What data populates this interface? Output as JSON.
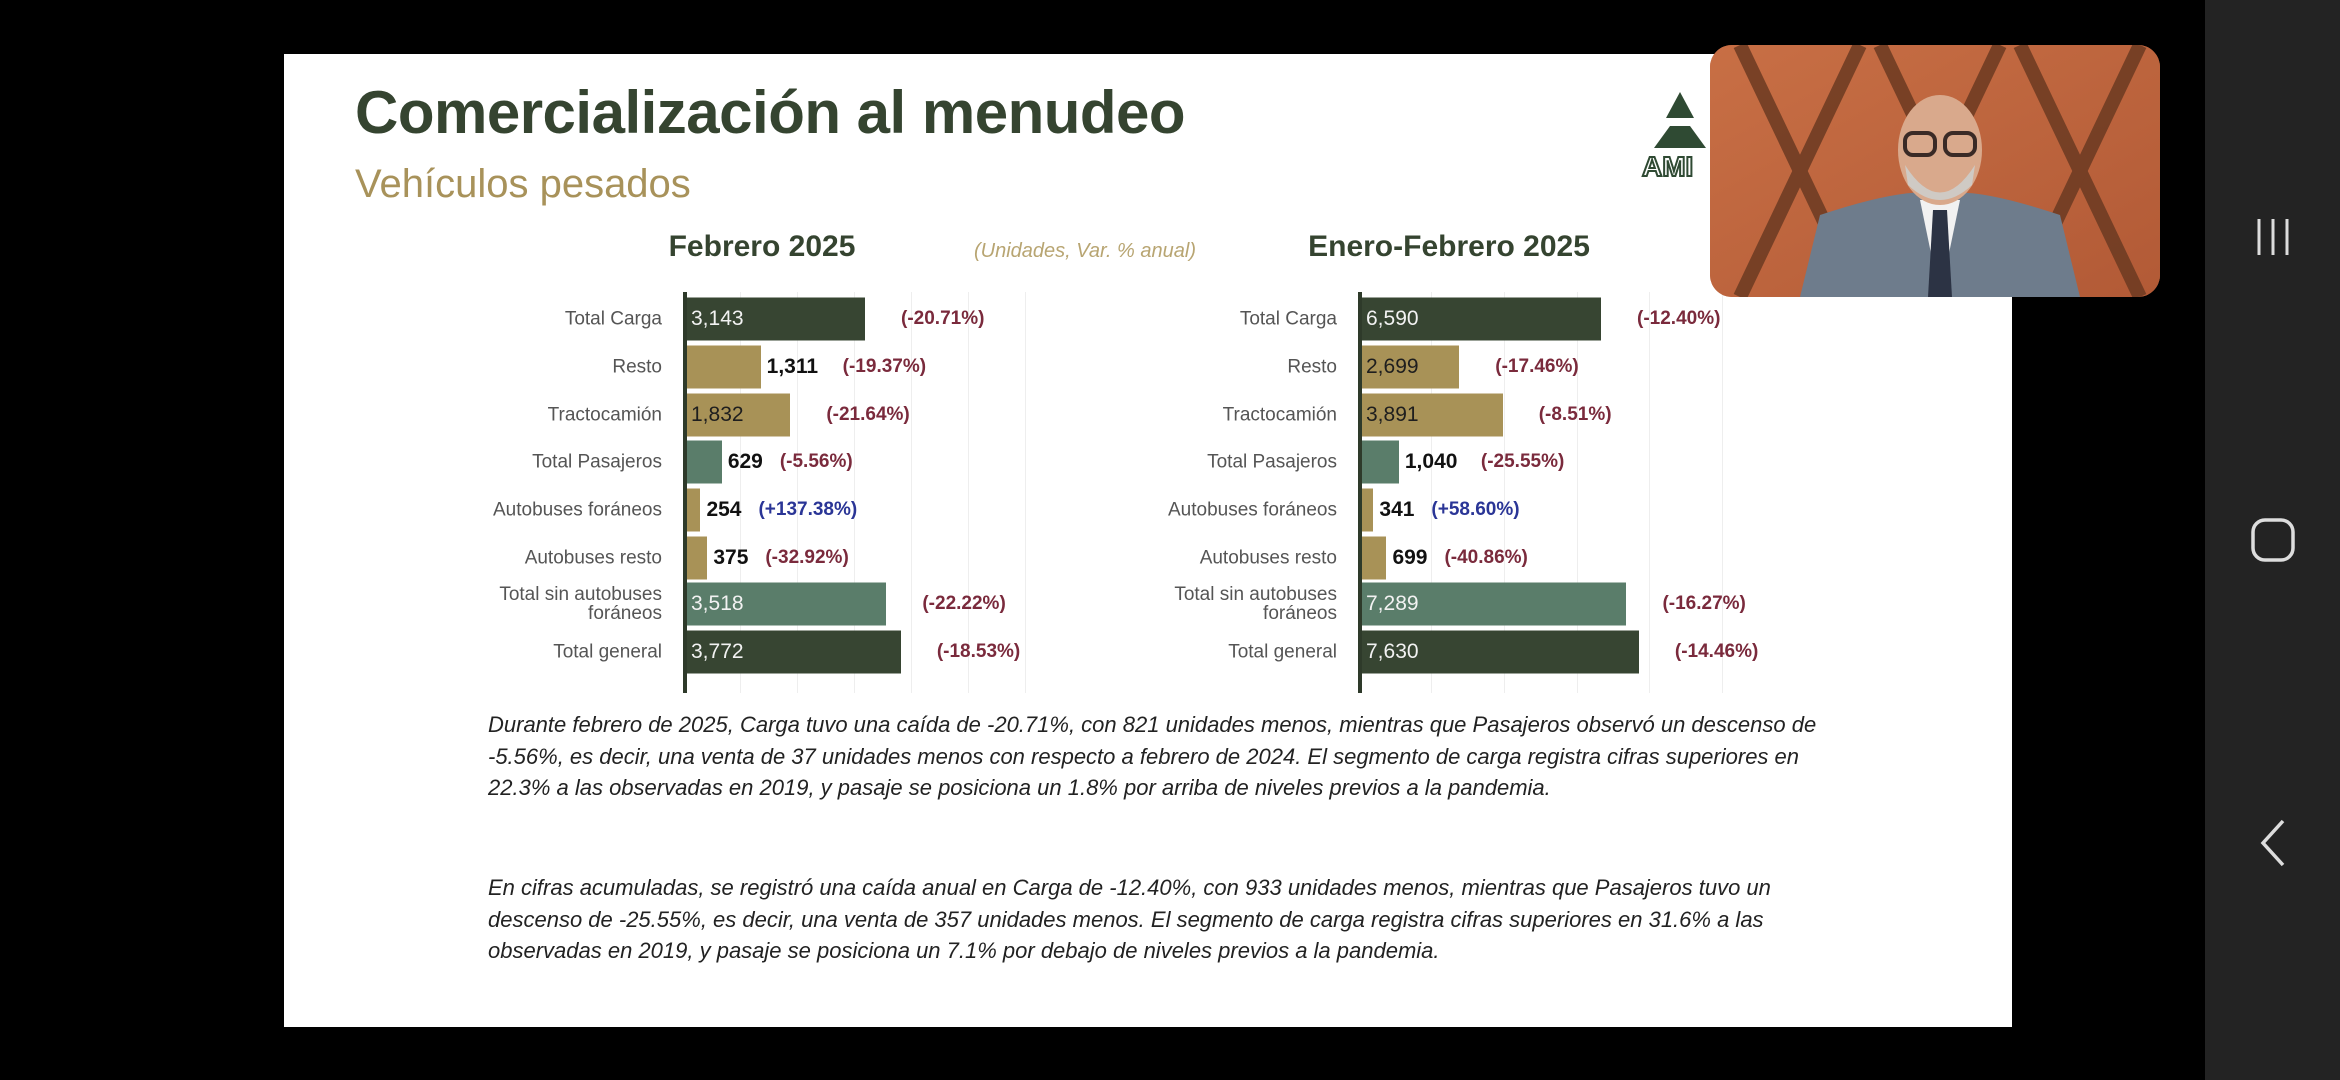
{
  "slide": {
    "title": "Comercialización al menudeo",
    "subtitle": "Vehículos pesados",
    "logo_text": "AMIA",
    "units_note": "(Unidades, Var. % anual)",
    "paragraphs": [
      "Durante febrero de 2025, Carga tuvo una caída de -20.71%, con 821 unidades menos, mientras que Pasajeros observó un descenso de -5.56%, es decir, una venta de 37 unidades menos con respecto a febrero de 2024. El segmento de carga registra cifras superiores en 22.3% a las observadas en 2019, y pasaje se posiciona un 1.8% por arriba de niveles previos a la pandemia.",
      "En cifras acumuladas, se registró una caída anual en Carga de -12.40%, con 933 unidades menos, mientras que Pasajeros tuvo un descenso de -25.55%, es decir, una venta de 357 unidades menos. El segmento de carga registra cifras superiores en 31.6% a las observadas en 2019, y pasaje se posiciona un 7.1% por debajo de niveles previos a la pandemia."
    ]
  },
  "colors": {
    "dark_green": "#374532",
    "gold": "#a89257",
    "teal": "#5a7d6a",
    "negative": "#7a2a3c",
    "positive": "#2a3596"
  },
  "chart_data": [
    {
      "type": "bar",
      "orientation": "horizontal",
      "title": "Febrero 2025",
      "grid_step": 1000,
      "categories": [
        "Total Carga",
        "Resto",
        "Tractocamión",
        "Total Pasajeros",
        "Autobuses foráneos",
        "Autobuses resto",
        "Total sin autobuses foráneos",
        "Total general"
      ],
      "values": [
        3143,
        1311,
        1832,
        629,
        254,
        375,
        3518,
        3772
      ],
      "value_labels": [
        "3,143",
        "1,311",
        "1,832",
        "629",
        "254",
        "375",
        "3,518",
        "3,772"
      ],
      "changes": [
        "(-20.71%)",
        "(-19.37%)",
        "(-21.64%)",
        "(-5.56%)",
        "(+137.38%)",
        "(-32.92%)",
        "(-22.22%)",
        "(-18.53%)"
      ],
      "bar_colors": [
        "dark_green",
        "gold",
        "gold",
        "teal",
        "gold",
        "gold",
        "teal",
        "dark_green"
      ]
    },
    {
      "type": "bar",
      "orientation": "horizontal",
      "title": "Enero-Febrero 2025",
      "grid_step": 2000,
      "categories": [
        "Total Carga",
        "Resto",
        "Tractocamión",
        "Total Pasajeros",
        "Autobuses foráneos",
        "Autobuses resto",
        "Total sin autobuses foráneos",
        "Total general"
      ],
      "values": [
        6590,
        2699,
        3891,
        1040,
        341,
        699,
        7289,
        7630
      ],
      "value_labels": [
        "6,590",
        "2,699",
        "3,891",
        "1,040",
        "341",
        "699",
        "7,289",
        "7,630"
      ],
      "changes": [
        "(-12.40%)",
        "(-17.46%)",
        "(-8.51%)",
        "(-25.55%)",
        "(+58.60%)",
        "(-40.86%)",
        "(-16.27%)",
        "(-14.46%)"
      ],
      "bar_colors": [
        "dark_green",
        "gold",
        "gold",
        "teal",
        "gold",
        "gold",
        "teal",
        "dark_green"
      ]
    }
  ],
  "nav": {
    "recents_icon": "recents-icon",
    "home_icon": "home-icon",
    "back_icon": "back-icon"
  }
}
